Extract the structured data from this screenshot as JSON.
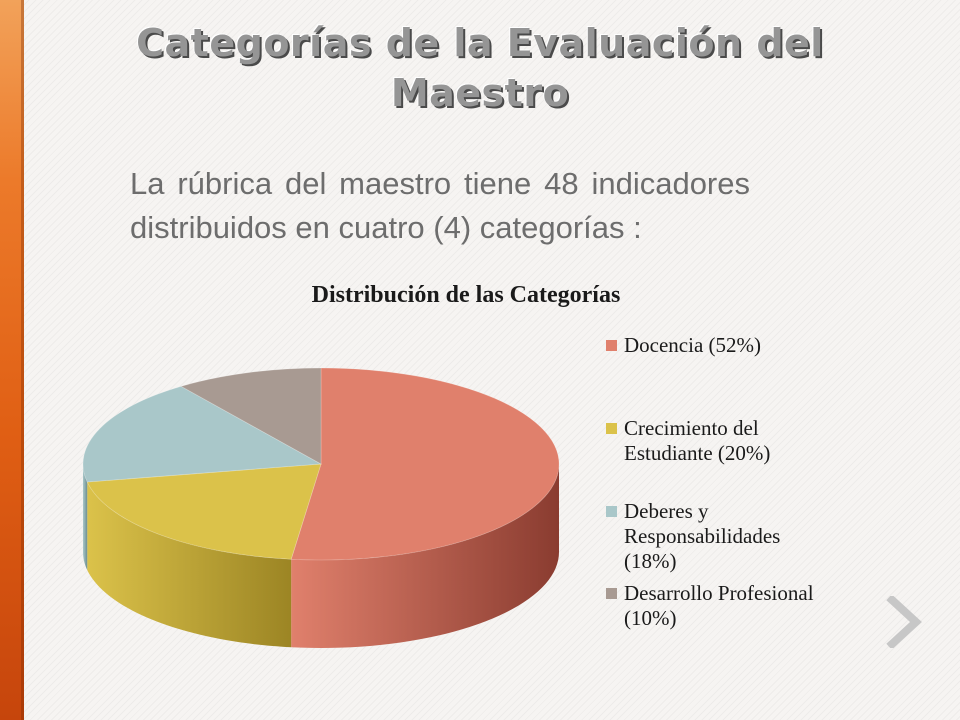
{
  "slide": {
    "title_line1": "Categorías de la Evaluación del",
    "title_line2": "Maestro",
    "body_text": "La rúbrica del maestro tiene 48 indicadores distribuidos en cuatro (4) categorías :",
    "nav_icon": "chevron-right-icon"
  },
  "chart_data": {
    "type": "pie",
    "title": "Distribución de las Categorías",
    "style": "3d",
    "legend_position": "right",
    "slices": [
      {
        "label": "Docencia (52%)",
        "legend_lines": [
          "Docencia (52%)"
        ],
        "value": 52,
        "color": "#e0806c",
        "side_color": "#8a3c30"
      },
      {
        "label": "Crecimiento del Estudiante (20%)",
        "legend_lines": [
          "Crecimiento del",
          "Estudiante (20%)"
        ],
        "value": 20,
        "color": "#dbc24a",
        "side_color": "#9c8524"
      },
      {
        "label": "Deberes y Responsabilidades (18%)",
        "legend_lines": [
          "Deberes y",
          "Responsabilidades",
          "(18%)"
        ],
        "value": 18,
        "color": "#a9c7c9",
        "side_color": "#6e8f91"
      },
      {
        "label": "Desarrollo Profesional (10%)",
        "legend_lines": [
          "Desarrollo Profesional",
          "(10%)"
        ],
        "value": 10,
        "color": "#a89a92",
        "side_color": "#6f635c"
      }
    ]
  }
}
